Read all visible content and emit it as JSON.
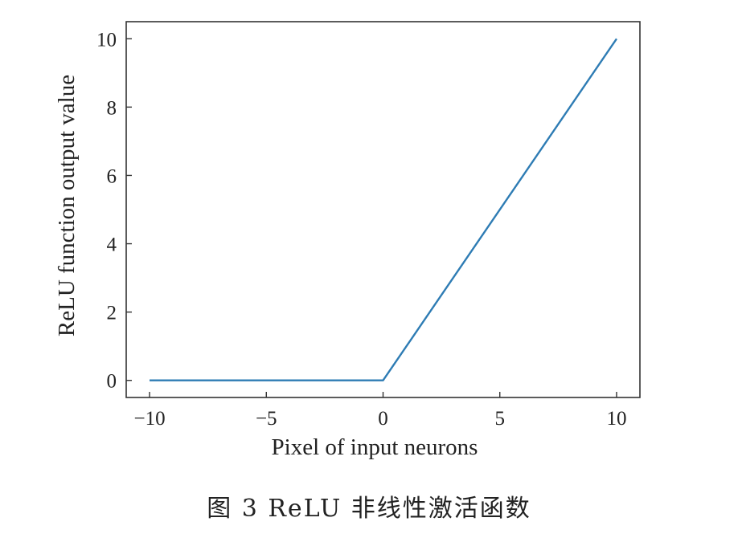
{
  "chart_data": {
    "type": "line",
    "xlabel": "Pixel of input neurons",
    "ylabel": "ReLU function output value",
    "xlim": [
      -11,
      11
    ],
    "ylim": [
      -0.5,
      10.5
    ],
    "xticks": [
      -10,
      -5,
      0,
      5,
      10
    ],
    "xtick_labels": [
      "−10",
      "−5",
      "0",
      "5",
      "10"
    ],
    "yticks": [
      0,
      2,
      4,
      6,
      8,
      10
    ],
    "ytick_labels": [
      "0",
      "2",
      "4",
      "6",
      "8",
      "10"
    ],
    "grid": false,
    "series": [
      {
        "x": [
          -10,
          0,
          10
        ],
        "y": [
          0,
          0,
          10
        ],
        "color": "#2e7cb4"
      }
    ]
  },
  "caption": "图 3  ReLU 非线性激活函数"
}
